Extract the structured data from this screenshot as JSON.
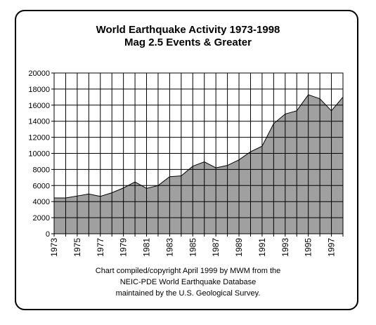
{
  "chart_data": {
    "type": "area",
    "title": "World Earthquake Activity 1973-1998",
    "subtitle": "Mag 2.5 Events & Greater",
    "x": [
      1973,
      1974,
      1975,
      1976,
      1977,
      1978,
      1979,
      1980,
      1981,
      1982,
      1983,
      1984,
      1985,
      1986,
      1987,
      1988,
      1989,
      1990,
      1991,
      1992,
      1993,
      1994,
      1995,
      1996,
      1997,
      1998
    ],
    "values": [
      4450,
      4450,
      4700,
      4950,
      4650,
      5100,
      5700,
      6450,
      5650,
      6000,
      7100,
      7200,
      8400,
      8950,
      8200,
      8500,
      9200,
      10200,
      10900,
      13700,
      14900,
      15300,
      17300,
      16800,
      15300,
      17000
    ],
    "xticks": [
      "1973",
      "1975",
      "1977",
      "1979",
      "1981",
      "1983",
      "1985",
      "1987",
      "1989",
      "1991",
      "1993",
      "1995",
      "1997"
    ],
    "yticks": [
      "0",
      "2000",
      "4000",
      "6000",
      "8000",
      "10000",
      "12000",
      "14000",
      "16000",
      "18000",
      "20000"
    ],
    "ylim": [
      0,
      20000
    ],
    "xlim": [
      1973,
      1998
    ],
    "grid": true,
    "fill_color": "#a0a0a0",
    "background_color": "#ffffff",
    "caption_lines": [
      "Chart compiled/copyright April 1999 by MWM from the",
      "NEIC-PDE World Earthquake Database",
      "maintained by the U.S. Geological Survey."
    ]
  }
}
